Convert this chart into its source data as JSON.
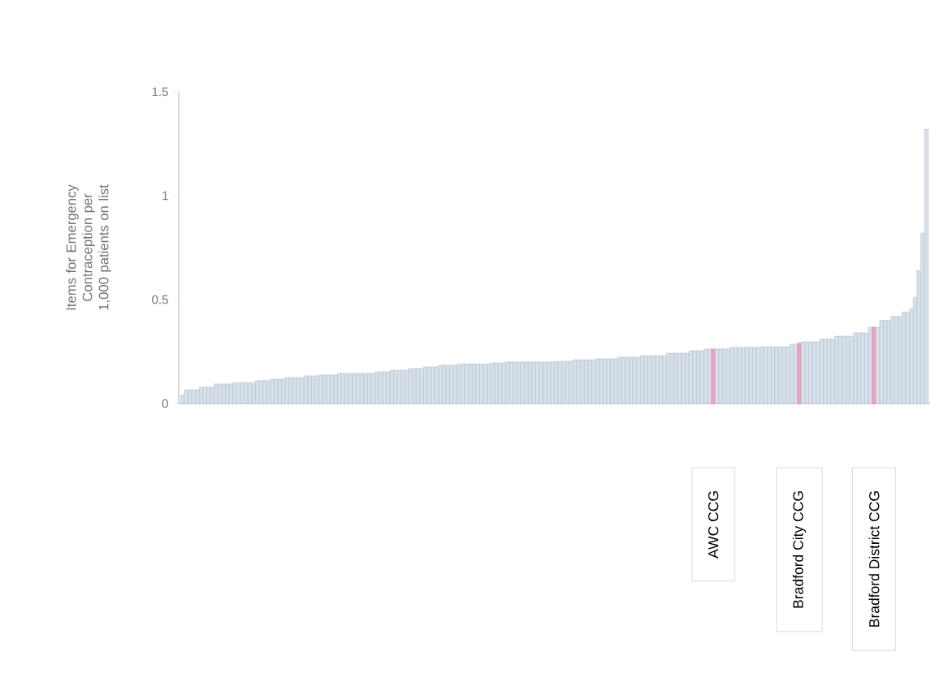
{
  "chart_data": {
    "type": "bar",
    "ylabel": "Items for Emergency Contraception per 1,000 patients on list",
    "categories": [
      null,
      null,
      null,
      null,
      null,
      null,
      null,
      null,
      null,
      null,
      null,
      null,
      null,
      null,
      null,
      null,
      null,
      null,
      null,
      null,
      null,
      null,
      null,
      null,
      null,
      null,
      null,
      null,
      null,
      null,
      null,
      null,
      null,
      null,
      null,
      null,
      null,
      null,
      null,
      null,
      null,
      null,
      null,
      null,
      null,
      null,
      null,
      null,
      null,
      null,
      null,
      null,
      null,
      null,
      null,
      null,
      null,
      null,
      null,
      null,
      null,
      null,
      null,
      null,
      null,
      null,
      null,
      null,
      null,
      null,
      null,
      null,
      null,
      null,
      null,
      null,
      null,
      null,
      null,
      null,
      null,
      null,
      null,
      null,
      null,
      null,
      null,
      null,
      null,
      null,
      null,
      null,
      null,
      null,
      null,
      null,
      null,
      null,
      null,
      null,
      null,
      null,
      null,
      null,
      null,
      null,
      null,
      null,
      null,
      null,
      null,
      null,
      null,
      null,
      null,
      null,
      null,
      null,
      null,
      null,
      null,
      null,
      null,
      null,
      null,
      null,
      null,
      null,
      null,
      null,
      null,
      null,
      null,
      null,
      null,
      null,
      null,
      null,
      null,
      null,
      null,
      null,
      "AWC CCG",
      null,
      null,
      null,
      null,
      null,
      null,
      null,
      null,
      null,
      null,
      null,
      null,
      null,
      null,
      null,
      null,
      null,
      null,
      null,
      null,
      null,
      null,
      "Bradford City CCG",
      null,
      null,
      null,
      null,
      null,
      null,
      null,
      null,
      null,
      null,
      null,
      null,
      null,
      null,
      null,
      null,
      null,
      null,
      null,
      "Bradford District CCG",
      null,
      null,
      null,
      null,
      null,
      null,
      null,
      null,
      null,
      null,
      null,
      null,
      null,
      null
    ],
    "values": [
      0.04,
      0.066,
      0.066,
      0.066,
      0.066,
      0.078,
      0.078,
      0.078,
      0.078,
      0.094,
      0.094,
      0.094,
      0.094,
      0.094,
      0.1,
      0.1,
      0.1,
      0.1,
      0.1,
      0.1,
      0.11,
      0.11,
      0.11,
      0.11,
      0.117,
      0.117,
      0.117,
      0.117,
      0.125,
      0.125,
      0.125,
      0.125,
      0.125,
      0.133,
      0.133,
      0.133,
      0.133,
      0.137,
      0.137,
      0.137,
      0.137,
      0.137,
      0.145,
      0.145,
      0.145,
      0.145,
      0.145,
      0.145,
      0.145,
      0.145,
      0.145,
      0.145,
      0.152,
      0.152,
      0.152,
      0.152,
      0.16,
      0.16,
      0.16,
      0.16,
      0.16,
      0.168,
      0.168,
      0.168,
      0.168,
      0.176,
      0.176,
      0.176,
      0.176,
      0.184,
      0.184,
      0.184,
      0.184,
      0.184,
      0.19,
      0.19,
      0.19,
      0.19,
      0.19,
      0.19,
      0.19,
      0.19,
      0.19,
      0.195,
      0.195,
      0.195,
      0.195,
      0.2,
      0.2,
      0.2,
      0.2,
      0.2,
      0.2,
      0.2,
      0.2,
      0.2,
      0.2,
      0.2,
      0.2,
      0.2,
      0.203,
      0.203,
      0.203,
      0.203,
      0.203,
      0.21,
      0.21,
      0.21,
      0.21,
      0.21,
      0.21,
      0.215,
      0.215,
      0.215,
      0.215,
      0.215,
      0.215,
      0.223,
      0.223,
      0.223,
      0.223,
      0.223,
      0.223,
      0.23,
      0.23,
      0.23,
      0.23,
      0.23,
      0.23,
      0.23,
      0.242,
      0.242,
      0.242,
      0.242,
      0.242,
      0.242,
      0.254,
      0.254,
      0.254,
      0.254,
      0.262,
      0.262,
      0.262,
      0.262,
      0.262,
      0.262,
      0.262,
      0.27,
      0.27,
      0.27,
      0.27,
      0.27,
      0.27,
      0.27,
      0.27,
      0.273,
      0.273,
      0.273,
      0.273,
      0.273,
      0.273,
      0.273,
      0.273,
      0.285,
      0.285,
      0.29,
      0.297,
      0.297,
      0.297,
      0.297,
      0.297,
      0.31,
      0.31,
      0.31,
      0.31,
      0.324,
      0.324,
      0.324,
      0.324,
      0.324,
      0.34,
      0.34,
      0.34,
      0.34,
      0.367,
      0.367,
      0.367,
      0.4,
      0.4,
      0.4,
      0.42,
      0.42,
      0.42,
      0.44,
      0.44,
      0.457,
      0.51,
      0.64,
      0.82,
      1.32
    ],
    "colors": [
      "#d7e1eb",
      "#d7e1eb",
      "#d7e1eb",
      "#d7e1eb",
      "#d7e1eb",
      "#d7e1eb",
      "#d7e1eb",
      "#d7e1eb",
      "#d7e1eb",
      "#d7e1eb",
      "#d7e1eb",
      "#d7e1eb",
      "#d7e1eb",
      "#d7e1eb",
      "#d7e1eb",
      "#d7e1eb",
      "#d7e1eb",
      "#d7e1eb",
      "#d7e1eb",
      "#d7e1eb",
      "#d7e1eb",
      "#d7e1eb",
      "#d7e1eb",
      "#d7e1eb",
      "#d7e1eb",
      "#d7e1eb",
      "#d7e1eb",
      "#d7e1eb",
      "#d7e1eb",
      "#d7e1eb",
      "#d7e1eb",
      "#d7e1eb",
      "#d7e1eb",
      "#d7e1eb",
      "#d7e1eb",
      "#d7e1eb",
      "#d7e1eb",
      "#d7e1eb",
      "#d7e1eb",
      "#d7e1eb",
      "#d7e1eb",
      "#d7e1eb",
      "#d7e1eb",
      "#d7e1eb",
      "#d7e1eb",
      "#d7e1eb",
      "#d7e1eb",
      "#d7e1eb",
      "#d7e1eb",
      "#d7e1eb",
      "#d7e1eb",
      "#d7e1eb",
      "#d7e1eb",
      "#d7e1eb",
      "#d7e1eb",
      "#d7e1eb",
      "#d7e1eb",
      "#d7e1eb",
      "#d7e1eb",
      "#d7e1eb",
      "#d7e1eb",
      "#d7e1eb",
      "#d7e1eb",
      "#d7e1eb",
      "#d7e1eb",
      "#d7e1eb",
      "#d7e1eb",
      "#d7e1eb",
      "#d7e1eb",
      "#d7e1eb",
      "#d7e1eb",
      "#d7e1eb",
      "#d7e1eb",
      "#d7e1eb",
      "#d7e1eb",
      "#d7e1eb",
      "#d7e1eb",
      "#d7e1eb",
      "#d7e1eb",
      "#d7e1eb",
      "#d7e1eb",
      "#d7e1eb",
      "#d7e1eb",
      "#d7e1eb",
      "#d7e1eb",
      "#d7e1eb",
      "#d7e1eb",
      "#d7e1eb",
      "#d7e1eb",
      "#d7e1eb",
      "#d7e1eb",
      "#d7e1eb",
      "#d7e1eb",
      "#d7e1eb",
      "#d7e1eb",
      "#d7e1eb",
      "#d7e1eb",
      "#d7e1eb",
      "#d7e1eb",
      "#d7e1eb",
      "#d7e1eb",
      "#d7e1eb",
      "#d7e1eb",
      "#d7e1eb",
      "#d7e1eb",
      "#d7e1eb",
      "#d7e1eb",
      "#d7e1eb",
      "#d7e1eb",
      "#d7e1eb",
      "#d7e1eb",
      "#d7e1eb",
      "#d7e1eb",
      "#d7e1eb",
      "#d7e1eb",
      "#d7e1eb",
      "#d7e1eb",
      "#d7e1eb",
      "#d7e1eb",
      "#d7e1eb",
      "#d7e1eb",
      "#d7e1eb",
      "#d7e1eb",
      "#d7e1eb",
      "#d7e1eb",
      "#d7e1eb",
      "#d7e1eb",
      "#d7e1eb",
      "#d7e1eb",
      "#d7e1eb",
      "#d7e1eb",
      "#d7e1eb",
      "#d7e1eb",
      "#d7e1eb",
      "#d7e1eb",
      "#d7e1eb",
      "#d7e1eb",
      "#d7e1eb",
      "#d7e1eb",
      "#d7e1eb",
      "#d7e1eb",
      "#d7e1eb",
      "#f2a0bd",
      "#d7e1eb",
      "#d7e1eb",
      "#d7e1eb",
      "#d7e1eb",
      "#d7e1eb",
      "#d7e1eb",
      "#d7e1eb",
      "#d7e1eb",
      "#d7e1eb",
      "#d7e1eb",
      "#d7e1eb",
      "#d7e1eb",
      "#d7e1eb",
      "#d7e1eb",
      "#d7e1eb",
      "#d7e1eb",
      "#d7e1eb",
      "#d7e1eb",
      "#d7e1eb",
      "#d7e1eb",
      "#d7e1eb",
      "#d7e1eb",
      "#f2a0bd",
      "#d7e1eb",
      "#d7e1eb",
      "#d7e1eb",
      "#d7e1eb",
      "#d7e1eb",
      "#d7e1eb",
      "#d7e1eb",
      "#d7e1eb",
      "#d7e1eb",
      "#d7e1eb",
      "#d7e1eb",
      "#d7e1eb",
      "#d7e1eb",
      "#d7e1eb",
      "#d7e1eb",
      "#d7e1eb",
      "#d7e1eb",
      "#d7e1eb",
      "#d7e1eb",
      "#f2a0bd",
      "#d7e1eb",
      "#d7e1eb",
      "#d7e1eb",
      "#d7e1eb",
      "#d7e1eb",
      "#d7e1eb",
      "#d7e1eb",
      "#d7e1eb",
      "#d7e1eb",
      "#d7e1eb",
      "#d7e1eb",
      "#d7e1eb",
      "#d7e1eb",
      "#d7e1eb"
    ],
    "ylim": [
      0,
      1.5
    ],
    "yticks": [
      0,
      0.5,
      1,
      1.5
    ]
  }
}
